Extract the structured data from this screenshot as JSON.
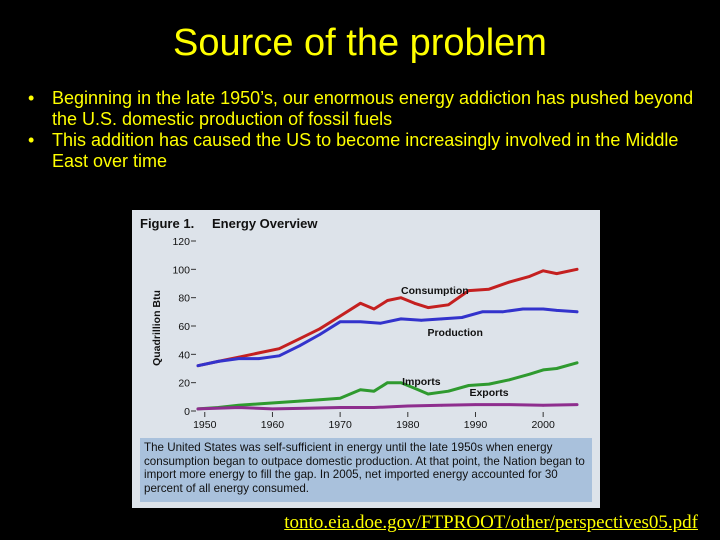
{
  "slide": {
    "title": "Source of the problem",
    "bullets": [
      "Beginning in the late 1950’s, our enormous energy addiction has pushed beyond the U.S. domestic production of fossil fuels",
      "This addition has caused the US to become increasingly involved in the Middle East over time"
    ],
    "bullet_symbol": "•",
    "source_link": "tonto.eia.doe.gov/FTPROOT/other/perspectives05.pdf",
    "text_color": "#ffff00",
    "background": "#000000"
  },
  "chart_data": {
    "type": "line",
    "figure_label": "Figure 1.",
    "title": "Energy Overview",
    "ylabel": "Quadrillion Btu",
    "ylim": [
      0,
      120
    ],
    "yticks": [
      0,
      20,
      40,
      60,
      80,
      100,
      120
    ],
    "xlim": [
      1949,
      2005
    ],
    "xticks": [
      1950,
      1960,
      1970,
      1980,
      1990,
      2000
    ],
    "grid": false,
    "caption": "The United States was self-sufficient in energy until the late 1950s when energy consumption began to outpace domestic production.  At that point, the Nation began to import more energy to fill the gap. In 2005, net imported energy accounted for 30 percent of all energy consumed.",
    "series": [
      {
        "name": "Consumption",
        "color": "#c42020",
        "x": [
          1949,
          1952,
          1955,
          1958,
          1961,
          1964,
          1967,
          1970,
          1973,
          1975,
          1977,
          1979,
          1981,
          1983,
          1986,
          1989,
          1992,
          1995,
          1998,
          2000,
          2002,
          2005
        ],
        "y": [
          32,
          35,
          38,
          41,
          44,
          51,
          58,
          67,
          76,
          72,
          78,
          80,
          76,
          73,
          75,
          85,
          86,
          91,
          95,
          99,
          97,
          100
        ]
      },
      {
        "name": "Production",
        "color": "#3333cc",
        "x": [
          1949,
          1952,
          1955,
          1958,
          1961,
          1964,
          1967,
          1970,
          1973,
          1976,
          1979,
          1982,
          1985,
          1988,
          1991,
          1994,
          1997,
          2000,
          2002,
          2005
        ],
        "y": [
          32,
          35,
          37,
          37,
          39,
          46,
          54,
          63,
          63,
          62,
          65,
          64,
          65,
          66,
          70,
          70,
          72,
          72,
          71,
          70
        ]
      },
      {
        "name": "Imports",
        "color": "#2f9a2f",
        "x": [
          1949,
          1952,
          1955,
          1958,
          1961,
          1964,
          1967,
          1970,
          1973,
          1975,
          1977,
          1979,
          1981,
          1983,
          1986,
          1989,
          1992,
          1995,
          1998,
          2000,
          2002,
          2005
        ],
        "y": [
          1.5,
          2.5,
          4,
          5,
          6,
          7,
          8,
          9,
          15,
          14,
          20,
          20,
          16,
          12,
          14,
          18,
          19,
          22,
          26,
          29,
          30,
          34
        ]
      },
      {
        "name": "Exports",
        "color": "#8e2e8e",
        "x": [
          1949,
          1955,
          1960,
          1965,
          1970,
          1975,
          1980,
          1985,
          1990,
          1995,
          2000,
          2005
        ],
        "y": [
          1.5,
          2.5,
          1.5,
          2,
          2.5,
          2.5,
          3.5,
          4,
          4.5,
          4.5,
          4,
          4.5
        ]
      }
    ]
  }
}
